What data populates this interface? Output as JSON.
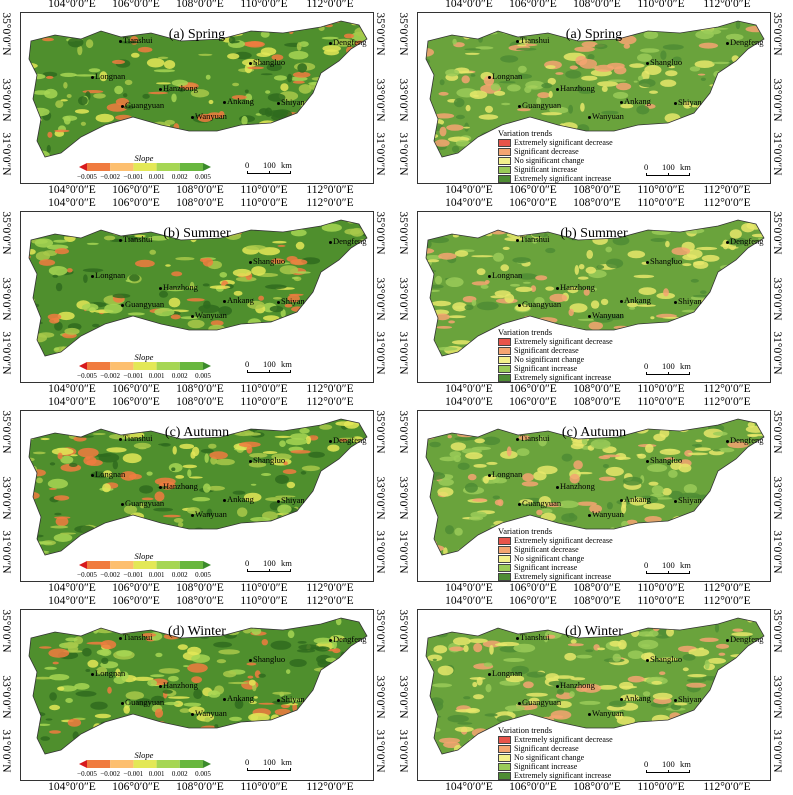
{
  "lon_labels": [
    "104°0′0″E",
    "106°0′0″E",
    "108°0′0″E",
    "110°0′0″E",
    "112°0′0″E"
  ],
  "lat_left": [
    "35°0′0″N",
    "33°0′0″N",
    "31°0′0″N"
  ],
  "lat_right": [
    "35°0′0″N",
    "33°0′0″N",
    "31°0′0″N"
  ],
  "cities": [
    "Tianshui",
    "Dengfeng",
    "Shangluo",
    "Longnan",
    "Hanzhong",
    "Ankang",
    "Shiyan",
    "Guangyuan",
    "Wanyuan"
  ],
  "scale_label": "0     100 km",
  "scale": {
    "zero": "0",
    "dist": "100",
    "unit": "km"
  },
  "slope_legend": {
    "title": "Slope",
    "ticks": [
      "−0.005",
      "−0.002",
      "−0.001",
      "0.001",
      "0.002",
      "0.005"
    ],
    "colors": [
      "#d7191c",
      "#f07b3f",
      "#fdbf6f",
      "#e3e857",
      "#a6d654",
      "#69b73f",
      "#3b8a2c"
    ]
  },
  "trend_legend": {
    "title": "Variation trends",
    "items": [
      {
        "label": "Extremely significant decrease",
        "color": "#e8544a"
      },
      {
        "label": "Significant decrease",
        "color": "#f4a571"
      },
      {
        "label": "No significant change",
        "color": "#f3f08c"
      },
      {
        "label": "Significant increase",
        "color": "#9acb58"
      },
      {
        "label": "Extremely significant increase",
        "color": "#4e8c34"
      }
    ]
  },
  "panels": [
    {
      "title": "(a) Spring",
      "type": "slope"
    },
    {
      "title": "(a) Spring",
      "type": "trend"
    },
    {
      "title": "(b) Summer",
      "type": "slope"
    },
    {
      "title": "(b) Summer",
      "type": "trend"
    },
    {
      "title": "(c) Autumn",
      "type": "slope"
    },
    {
      "title": "(c) Autumn",
      "type": "trend"
    },
    {
      "title": "(d) Winter",
      "type": "slope"
    },
    {
      "title": "(d) Winter",
      "type": "trend"
    }
  ],
  "colors": {
    "slope_base": "#4f8f2d",
    "slope_dark": "#2f6b1f",
    "slope_light": "#a8c94a",
    "trend_base": "#6aa33c",
    "trend_yellow": "#e6e86a",
    "outline": "#333333"
  }
}
